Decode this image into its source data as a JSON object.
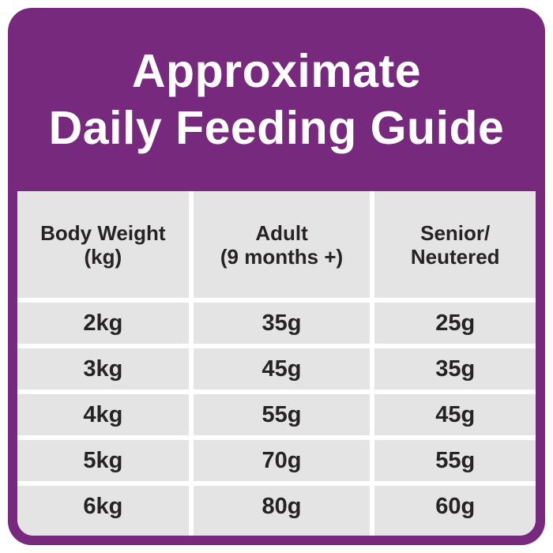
{
  "title": {
    "line1": "Approximate",
    "line2": "Daily Feeding Guide"
  },
  "colors": {
    "card_purple": "#77297E",
    "cell_gray": "#E5E4E5",
    "text_dark": "#272325",
    "title_white": "#FFFFFF",
    "gutter_white": "#FFFFFF"
  },
  "table": {
    "headers": [
      {
        "line1": "Body Weight",
        "line2": "(kg)"
      },
      {
        "line1": "Adult",
        "line2": "(9 months +)"
      },
      {
        "line1": "Senior/",
        "line2": "Neutered"
      }
    ],
    "rows": [
      {
        "cells": [
          "2kg",
          "35g",
          "25g"
        ]
      },
      {
        "cells": [
          "3kg",
          "45g",
          "35g"
        ]
      },
      {
        "cells": [
          "4kg",
          "55g",
          "45g"
        ]
      },
      {
        "cells": [
          "5kg",
          "70g",
          "55g"
        ]
      },
      {
        "cells": [
          "6kg",
          "80g",
          "60g"
        ]
      }
    ]
  },
  "chart_data": {
    "type": "table",
    "title": "Approximate Daily Feeding Guide",
    "columns": [
      "Body Weight (kg)",
      "Adult (9 months +)",
      "Senior/Neutered"
    ],
    "body_weight_kg": [
      2,
      3,
      4,
      5,
      6
    ],
    "series": [
      {
        "name": "Adult (9 months +)",
        "values_g": [
          35,
          45,
          55,
          70,
          80
        ]
      },
      {
        "name": "Senior/Neutered",
        "values_g": [
          25,
          35,
          45,
          55,
          60
        ]
      }
    ],
    "rows": [
      [
        "2kg",
        "35g",
        "25g"
      ],
      [
        "3kg",
        "45g",
        "35g"
      ],
      [
        "4kg",
        "55g",
        "45g"
      ],
      [
        "5kg",
        "70g",
        "55g"
      ],
      [
        "6kg",
        "80g",
        "60g"
      ]
    ],
    "units": "grams per day"
  }
}
